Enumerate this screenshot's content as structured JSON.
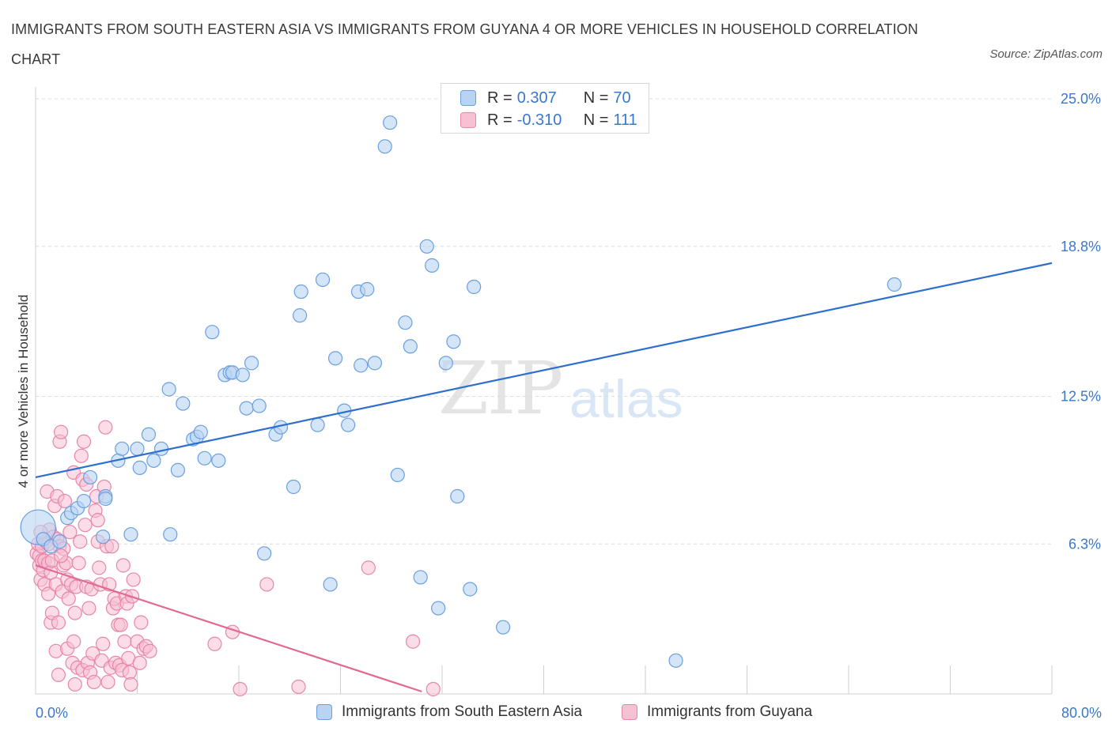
{
  "title": "IMMIGRANTS FROM SOUTH EASTERN ASIA VS IMMIGRANTS FROM GUYANA 4 OR MORE VEHICLES IN HOUSEHOLD CORRELATION CHART",
  "source": "Source: ZipAtlas.com",
  "watermark": {
    "zip": "ZIP",
    "atlas": "atlas"
  },
  "legend": {
    "series1": {
      "r_label": "R =",
      "r_value": "0.307",
      "n_label": "N =",
      "n_value": "70"
    },
    "series2": {
      "r_label": "R =",
      "r_value": "-0.310",
      "n_label": "N =",
      "n_value": "111"
    }
  },
  "colors": {
    "blue_fill": "#b8d3f4",
    "blue_stroke": "#6a9fe0",
    "blue_line": "#2e6fce",
    "pink_fill": "#f7c0d3",
    "pink_stroke": "#e886a8",
    "pink_line": "#e06a94",
    "axis_text": "#3b78c8",
    "grid": "#dcdcdc"
  },
  "chart_data": {
    "type": "scatter",
    "title": "IMMIGRANTS FROM SOUTH EASTERN ASIA VS IMMIGRANTS FROM GUYANA 4 OR MORE VEHICLES IN HOUSEHOLD CORRELATION CHART",
    "xlabel": "",
    "ylabel": "4 or more Vehicles in Household",
    "xlim": [
      0,
      80
    ],
    "ylim": [
      0,
      25.5
    ],
    "x_tick_labels": [
      "0.0%",
      "80.0%"
    ],
    "y_ticks": [
      6.3,
      12.5,
      18.8,
      25.0
    ],
    "y_tick_labels": [
      "6.3%",
      "12.5%",
      "18.8%",
      "25.0%"
    ],
    "series": [
      {
        "name": "Immigrants from South Eastern Asia",
        "color": "blue",
        "trend": {
          "x": [
            0,
            80
          ],
          "y": [
            9.1,
            18.1
          ]
        },
        "points": [
          [
            0.2,
            7.0
          ],
          [
            0.6,
            6.5
          ],
          [
            1.2,
            6.2
          ],
          [
            1.9,
            6.4
          ],
          [
            2.5,
            7.4
          ],
          [
            2.8,
            7.6
          ],
          [
            3.3,
            7.8
          ],
          [
            3.8,
            8.1
          ],
          [
            4.3,
            9.1
          ],
          [
            5.5,
            8.3
          ],
          [
            5.5,
            8.2
          ],
          [
            5.3,
            6.6
          ],
          [
            6.5,
            9.8
          ],
          [
            6.8,
            10.3
          ],
          [
            7.5,
            6.7
          ],
          [
            8.0,
            10.3
          ],
          [
            8.2,
            9.5
          ],
          [
            8.9,
            10.9
          ],
          [
            9.3,
            9.8
          ],
          [
            9.9,
            10.3
          ],
          [
            10.5,
            12.8
          ],
          [
            10.6,
            6.7
          ],
          [
            11.2,
            9.4
          ],
          [
            11.6,
            12.2
          ],
          [
            12.4,
            10.7
          ],
          [
            12.7,
            10.8
          ],
          [
            13.3,
            9.9
          ],
          [
            13.9,
            15.2
          ],
          [
            14.4,
            9.8
          ],
          [
            14.9,
            13.4
          ],
          [
            15.3,
            13.5
          ],
          [
            15.5,
            13.5
          ],
          [
            16.3,
            13.4
          ],
          [
            16.6,
            12.0
          ],
          [
            17.0,
            13.9
          ],
          [
            17.6,
            12.1
          ],
          [
            18.0,
            5.9
          ],
          [
            18.9,
            10.9
          ],
          [
            19.3,
            11.2
          ],
          [
            20.3,
            8.7
          ],
          [
            20.8,
            15.9
          ],
          [
            20.9,
            16.9
          ],
          [
            22.2,
            11.3
          ],
          [
            22.6,
            17.4
          ],
          [
            23.2,
            4.6
          ],
          [
            23.6,
            14.1
          ],
          [
            24.3,
            11.9
          ],
          [
            24.6,
            11.3
          ],
          [
            25.4,
            16.9
          ],
          [
            25.6,
            13.8
          ],
          [
            26.1,
            17.0
          ],
          [
            26.7,
            13.9
          ],
          [
            27.5,
            23.0
          ],
          [
            27.9,
            24.0
          ],
          [
            28.5,
            9.2
          ],
          [
            29.1,
            15.6
          ],
          [
            29.5,
            14.6
          ],
          [
            30.3,
            4.9
          ],
          [
            30.8,
            18.8
          ],
          [
            31.2,
            18.0
          ],
          [
            31.7,
            3.6
          ],
          [
            32.3,
            13.9
          ],
          [
            32.9,
            14.8
          ],
          [
            33.2,
            8.3
          ],
          [
            34.2,
            4.4
          ],
          [
            34.5,
            17.1
          ],
          [
            36.8,
            2.8
          ],
          [
            50.4,
            1.4
          ],
          [
            67.6,
            17.2
          ],
          [
            13.0,
            11.0
          ]
        ]
      },
      {
        "name": "Immigrants from Guyana",
        "color": "pink",
        "trend": {
          "x": [
            0,
            30.4
          ],
          "y": [
            5.4,
            0.1
          ]
        },
        "points": [
          [
            0.1,
            5.9
          ],
          [
            0.2,
            6.3
          ],
          [
            0.3,
            5.4
          ],
          [
            0.3,
            5.8
          ],
          [
            0.4,
            4.8
          ],
          [
            0.5,
            5.6
          ],
          [
            0.5,
            6.2
          ],
          [
            0.6,
            5.2
          ],
          [
            0.7,
            4.6
          ],
          [
            0.7,
            5.6
          ],
          [
            0.8,
            6.4
          ],
          [
            0.9,
            8.5
          ],
          [
            1.0,
            4.2
          ],
          [
            1.0,
            5.5
          ],
          [
            1.1,
            6.9
          ],
          [
            1.2,
            5.1
          ],
          [
            1.2,
            3.0
          ],
          [
            1.3,
            3.4
          ],
          [
            1.3,
            5.6
          ],
          [
            1.4,
            6.6
          ],
          [
            1.5,
            7.9
          ],
          [
            1.6,
            4.6
          ],
          [
            1.6,
            1.8
          ],
          [
            1.7,
            8.3
          ],
          [
            1.7,
            6.5
          ],
          [
            1.8,
            3.0
          ],
          [
            1.8,
            0.8
          ],
          [
            1.9,
            10.6
          ],
          [
            1.9,
            6.2
          ],
          [
            2.0,
            11.0
          ],
          [
            2.1,
            4.3
          ],
          [
            2.2,
            5.4
          ],
          [
            2.2,
            6.1
          ],
          [
            2.3,
            8.1
          ],
          [
            2.4,
            5.5
          ],
          [
            2.5,
            4.8
          ],
          [
            2.5,
            1.9
          ],
          [
            2.6,
            4.0
          ],
          [
            2.7,
            6.8
          ],
          [
            2.8,
            4.6
          ],
          [
            2.9,
            1.3
          ],
          [
            3.0,
            2.2
          ],
          [
            3.0,
            9.3
          ],
          [
            3.1,
            3.4
          ],
          [
            3.1,
            0.4
          ],
          [
            3.2,
            4.5
          ],
          [
            3.3,
            1.1
          ],
          [
            3.4,
            5.5
          ],
          [
            3.5,
            6.4
          ],
          [
            3.6,
            10.0
          ],
          [
            3.7,
            9.0
          ],
          [
            3.7,
            1.0
          ],
          [
            3.8,
            10.6
          ],
          [
            3.9,
            7.1
          ],
          [
            4.0,
            8.8
          ],
          [
            4.0,
            4.5
          ],
          [
            4.1,
            1.3
          ],
          [
            4.2,
            3.6
          ],
          [
            4.3,
            0.9
          ],
          [
            4.4,
            4.4
          ],
          [
            4.5,
            1.7
          ],
          [
            4.6,
            0.5
          ],
          [
            4.7,
            7.7
          ],
          [
            4.8,
            8.3
          ],
          [
            4.9,
            6.4
          ],
          [
            5.0,
            5.3
          ],
          [
            5.1,
            4.6
          ],
          [
            5.2,
            1.4
          ],
          [
            5.3,
            2.1
          ],
          [
            5.4,
            8.7
          ],
          [
            5.5,
            11.2
          ],
          [
            5.6,
            6.2
          ],
          [
            5.7,
            0.5
          ],
          [
            5.8,
            4.6
          ],
          [
            5.9,
            1.1
          ],
          [
            6.0,
            6.2
          ],
          [
            6.1,
            3.6
          ],
          [
            6.2,
            4.0
          ],
          [
            6.3,
            1.3
          ],
          [
            6.4,
            3.8
          ],
          [
            6.5,
            2.9
          ],
          [
            6.6,
            1.2
          ],
          [
            6.7,
            2.9
          ],
          [
            6.8,
            1.0
          ],
          [
            6.9,
            5.4
          ],
          [
            7.0,
            2.2
          ],
          [
            7.1,
            4.1
          ],
          [
            7.2,
            3.8
          ],
          [
            7.3,
            1.5
          ],
          [
            7.4,
            0.9
          ],
          [
            7.5,
            0.4
          ],
          [
            7.6,
            4.1
          ],
          [
            7.7,
            4.8
          ],
          [
            8.0,
            2.2
          ],
          [
            8.2,
            1.3
          ],
          [
            8.3,
            3.0
          ],
          [
            8.5,
            1.9
          ],
          [
            8.7,
            2.0
          ],
          [
            9.0,
            1.8
          ],
          [
            14.1,
            2.1
          ],
          [
            15.5,
            2.6
          ],
          [
            16.1,
            0.2
          ],
          [
            18.2,
            4.6
          ],
          [
            20.7,
            0.3
          ],
          [
            26.2,
            5.3
          ],
          [
            29.7,
            2.2
          ],
          [
            31.3,
            0.2
          ],
          [
            1.0,
            6.3
          ],
          [
            2.0,
            5.8
          ],
          [
            0.4,
            6.8
          ],
          [
            4.9,
            7.3
          ]
        ]
      }
    ]
  },
  "bottom_legend": {
    "item1": "Immigrants from South Eastern Asia",
    "item2": "Immigrants from Guyana"
  }
}
